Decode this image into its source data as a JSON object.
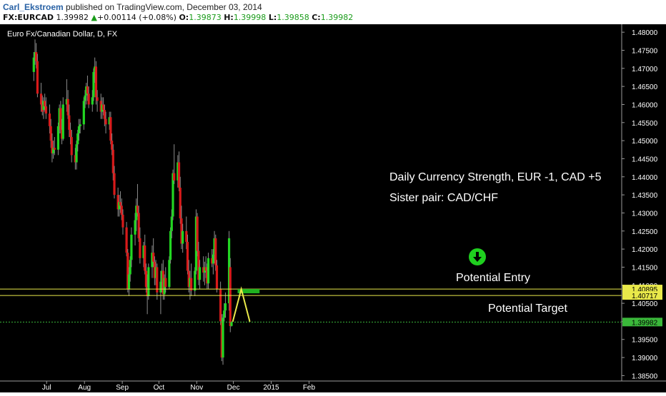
{
  "header": {
    "author": "Carl_Ekstroem",
    "published_text": " published on TradingView.com, December 03, 2014",
    "symbol": "FX:EURCAD",
    "last": "1.39982",
    "change_arrow": "triangle-up-icon",
    "change": "+0.00114 (+0.08%)",
    "open_label": "O:",
    "open": "1.39873",
    "high_label": "H:",
    "high": "1.39998",
    "low_label": "L:",
    "low": "1.39858",
    "close_label": "C:",
    "close": "1.39982"
  },
  "colors": {
    "up": "#22d622",
    "down": "#d81a1a",
    "wick": "#8c8c8c",
    "level_line": "#e9e94a",
    "price_line": "#3ab83a",
    "annotation": "#ffffff",
    "entry_box": "#1fb21f",
    "arrow_circle": "#1fcf1f"
  },
  "chart_data": {
    "type": "candlestick",
    "title": "Euro Fx/Canadian Dollar, D, FX",
    "y_ticks": [
      "1.48000",
      "1.47500",
      "1.47000",
      "1.46500",
      "1.46000",
      "1.45500",
      "1.45000",
      "1.44500",
      "1.44000",
      "1.43500",
      "1.43000",
      "1.42500",
      "1.42000",
      "1.41500",
      "1.41000",
      "1.40500",
      "1.40000",
      "1.39500",
      "1.39000",
      "1.38500"
    ],
    "ylim": [
      1.3835,
      1.4822
    ],
    "x_labels": [
      "Jul",
      "Aug",
      "Sep",
      "Oct",
      "Nov",
      "Dec",
      "2015",
      "Feb"
    ],
    "grid": false,
    "candles": [
      {
        "date": "2014-06-24",
        "o": 1.469,
        "h": 1.4745,
        "l": 1.4665,
        "c": 1.473
      },
      {
        "date": "2014-06-25",
        "o": 1.473,
        "h": 1.478,
        "l": 1.471,
        "c": 1.4745
      },
      {
        "date": "2014-06-26",
        "o": 1.4745,
        "h": 1.477,
        "l": 1.47,
        "c": 1.472
      },
      {
        "date": "2014-06-27",
        "o": 1.472,
        "h": 1.474,
        "l": 1.462,
        "c": 1.463
      },
      {
        "date": "2014-06-30",
        "o": 1.463,
        "h": 1.466,
        "l": 1.458,
        "c": 1.46
      },
      {
        "date": "2014-07-01",
        "o": 1.46,
        "h": 1.4625,
        "l": 1.457,
        "c": 1.458
      },
      {
        "date": "2014-07-02",
        "o": 1.4585,
        "h": 1.462,
        "l": 1.456,
        "c": 1.461
      },
      {
        "date": "2014-07-03",
        "o": 1.461,
        "h": 1.463,
        "l": 1.458,
        "c": 1.4595
      },
      {
        "date": "2014-07-04",
        "o": 1.4595,
        "h": 1.462,
        "l": 1.456,
        "c": 1.4575
      },
      {
        "date": "2014-07-07",
        "o": 1.4575,
        "h": 1.46,
        "l": 1.452,
        "c": 1.454
      },
      {
        "date": "2014-07-08",
        "o": 1.454,
        "h": 1.456,
        "l": 1.448,
        "c": 1.45
      },
      {
        "date": "2014-07-09",
        "o": 1.45,
        "h": 1.452,
        "l": 1.444,
        "c": 1.4465
      },
      {
        "date": "2014-07-10",
        "o": 1.4465,
        "h": 1.45,
        "l": 1.445,
        "c": 1.448
      },
      {
        "date": "2014-07-11",
        "o": 1.448,
        "h": 1.451,
        "l": 1.446,
        "c": 1.4475
      },
      {
        "date": "2014-07-14",
        "o": 1.4475,
        "h": 1.455,
        "l": 1.446,
        "c": 1.454
      },
      {
        "date": "2014-07-15",
        "o": 1.454,
        "h": 1.46,
        "l": 1.452,
        "c": 1.459
      },
      {
        "date": "2014-07-16",
        "o": 1.459,
        "h": 1.461,
        "l": 1.452,
        "c": 1.453
      },
      {
        "date": "2014-07-17",
        "o": 1.453,
        "h": 1.456,
        "l": 1.449,
        "c": 1.4505
      },
      {
        "date": "2014-07-18",
        "o": 1.4505,
        "h": 1.462,
        "l": 1.45,
        "c": 1.46
      },
      {
        "date": "2014-07-21",
        "o": 1.46,
        "h": 1.467,
        "l": 1.458,
        "c": 1.4615
      },
      {
        "date": "2014-07-22",
        "o": 1.4615,
        "h": 1.464,
        "l": 1.456,
        "c": 1.457
      },
      {
        "date": "2014-07-23",
        "o": 1.457,
        "h": 1.46,
        "l": 1.451,
        "c": 1.453
      },
      {
        "date": "2014-07-24",
        "o": 1.453,
        "h": 1.455,
        "l": 1.449,
        "c": 1.451
      },
      {
        "date": "2014-07-25",
        "o": 1.451,
        "h": 1.453,
        "l": 1.444,
        "c": 1.446
      },
      {
        "date": "2014-07-28",
        "o": 1.446,
        "h": 1.448,
        "l": 1.442,
        "c": 1.444
      },
      {
        "date": "2014-07-29",
        "o": 1.444,
        "h": 1.45,
        "l": 1.442,
        "c": 1.449
      },
      {
        "date": "2014-07-30",
        "o": 1.449,
        "h": 1.453,
        "l": 1.447,
        "c": 1.452
      },
      {
        "date": "2014-07-31",
        "o": 1.452,
        "h": 1.456,
        "l": 1.45,
        "c": 1.454
      },
      {
        "date": "2014-08-01",
        "o": 1.454,
        "h": 1.456,
        "l": 1.452,
        "c": 1.4545
      },
      {
        "date": "2014-08-04",
        "o": 1.4545,
        "h": 1.462,
        "l": 1.453,
        "c": 1.461
      },
      {
        "date": "2014-08-05",
        "o": 1.461,
        "h": 1.464,
        "l": 1.459,
        "c": 1.4625
      },
      {
        "date": "2014-08-06",
        "o": 1.4625,
        "h": 1.466,
        "l": 1.46,
        "c": 1.465
      },
      {
        "date": "2014-08-07",
        "o": 1.465,
        "h": 1.468,
        "l": 1.461,
        "c": 1.463
      },
      {
        "date": "2014-08-08",
        "o": 1.463,
        "h": 1.465,
        "l": 1.459,
        "c": 1.46
      },
      {
        "date": "2014-08-11",
        "o": 1.46,
        "h": 1.464,
        "l": 1.458,
        "c": 1.462
      },
      {
        "date": "2014-08-12",
        "o": 1.462,
        "h": 1.47,
        "l": 1.461,
        "c": 1.469
      },
      {
        "date": "2014-08-13",
        "o": 1.469,
        "h": 1.473,
        "l": 1.466,
        "c": 1.4705
      },
      {
        "date": "2014-08-14",
        "o": 1.4705,
        "h": 1.472,
        "l": 1.46,
        "c": 1.462
      },
      {
        "date": "2014-08-15",
        "o": 1.462,
        "h": 1.464,
        "l": 1.458,
        "c": 1.461
      },
      {
        "date": "2014-08-18",
        "o": 1.461,
        "h": 1.463,
        "l": 1.456,
        "c": 1.458
      },
      {
        "date": "2014-08-19",
        "o": 1.458,
        "h": 1.462,
        "l": 1.456,
        "c": 1.46
      },
      {
        "date": "2014-08-20",
        "o": 1.46,
        "h": 1.462,
        "l": 1.457,
        "c": 1.4585
      },
      {
        "date": "2014-08-21",
        "o": 1.4585,
        "h": 1.46,
        "l": 1.454,
        "c": 1.456
      },
      {
        "date": "2014-08-22",
        "o": 1.456,
        "h": 1.458,
        "l": 1.452,
        "c": 1.4545
      },
      {
        "date": "2014-08-25",
        "o": 1.4545,
        "h": 1.458,
        "l": 1.453,
        "c": 1.4565
      },
      {
        "date": "2014-08-26",
        "o": 1.4565,
        "h": 1.458,
        "l": 1.449,
        "c": 1.45
      },
      {
        "date": "2014-08-27",
        "o": 1.45,
        "h": 1.452,
        "l": 1.446,
        "c": 1.4475
      },
      {
        "date": "2014-08-28",
        "o": 1.4475,
        "h": 1.449,
        "l": 1.439,
        "c": 1.441
      },
      {
        "date": "2014-08-29",
        "o": 1.441,
        "h": 1.443,
        "l": 1.434,
        "c": 1.435
      },
      {
        "date": "2014-09-01",
        "o": 1.435,
        "h": 1.437,
        "l": 1.429,
        "c": 1.431
      },
      {
        "date": "2014-09-02",
        "o": 1.431,
        "h": 1.435,
        "l": 1.429,
        "c": 1.433
      },
      {
        "date": "2014-09-03",
        "o": 1.433,
        "h": 1.436,
        "l": 1.43,
        "c": 1.432
      },
      {
        "date": "2014-09-04",
        "o": 1.432,
        "h": 1.434,
        "l": 1.428,
        "c": 1.4295
      },
      {
        "date": "2014-09-05",
        "o": 1.4295,
        "h": 1.431,
        "l": 1.424,
        "c": 1.426
      },
      {
        "date": "2014-09-08",
        "o": 1.426,
        "h": 1.4275,
        "l": 1.418,
        "c": 1.419
      },
      {
        "date": "2014-09-09",
        "o": 1.419,
        "h": 1.42,
        "l": 1.408,
        "c": 1.409
      },
      {
        "date": "2014-09-10",
        "o": 1.409,
        "h": 1.415,
        "l": 1.407,
        "c": 1.413
      },
      {
        "date": "2014-09-11",
        "o": 1.413,
        "h": 1.418,
        "l": 1.411,
        "c": 1.417
      },
      {
        "date": "2014-09-12",
        "o": 1.417,
        "h": 1.426,
        "l": 1.415,
        "c": 1.424
      },
      {
        "date": "2014-09-15",
        "o": 1.424,
        "h": 1.43,
        "l": 1.421,
        "c": 1.428
      },
      {
        "date": "2014-09-16",
        "o": 1.428,
        "h": 1.434,
        "l": 1.425,
        "c": 1.432
      },
      {
        "date": "2014-09-17",
        "o": 1.432,
        "h": 1.438,
        "l": 1.429,
        "c": 1.43
      },
      {
        "date": "2014-09-18",
        "o": 1.43,
        "h": 1.432,
        "l": 1.422,
        "c": 1.423
      },
      {
        "date": "2014-09-19",
        "o": 1.423,
        "h": 1.426,
        "l": 1.416,
        "c": 1.4175
      },
      {
        "date": "2014-09-22",
        "o": 1.4175,
        "h": 1.422,
        "l": 1.415,
        "c": 1.421
      },
      {
        "date": "2014-09-23",
        "o": 1.421,
        "h": 1.424,
        "l": 1.413,
        "c": 1.414
      },
      {
        "date": "2014-09-24",
        "o": 1.414,
        "h": 1.416,
        "l": 1.408,
        "c": 1.4095
      },
      {
        "date": "2014-09-25",
        "o": 1.4095,
        "h": 1.413,
        "l": 1.402,
        "c": 1.407
      },
      {
        "date": "2014-09-26",
        "o": 1.407,
        "h": 1.416,
        "l": 1.406,
        "c": 1.415
      },
      {
        "date": "2014-09-29",
        "o": 1.415,
        "h": 1.421,
        "l": 1.412,
        "c": 1.419
      },
      {
        "date": "2014-09-30",
        "o": 1.419,
        "h": 1.423,
        "l": 1.415,
        "c": 1.4165
      },
      {
        "date": "2014-10-01",
        "o": 1.4165,
        "h": 1.418,
        "l": 1.41,
        "c": 1.412
      },
      {
        "date": "2014-10-02",
        "o": 1.412,
        "h": 1.417,
        "l": 1.41,
        "c": 1.415
      },
      {
        "date": "2014-10-03",
        "o": 1.415,
        "h": 1.416,
        "l": 1.406,
        "c": 1.408
      },
      {
        "date": "2014-10-06",
        "o": 1.408,
        "h": 1.414,
        "l": 1.402,
        "c": 1.411
      },
      {
        "date": "2014-10-07",
        "o": 1.411,
        "h": 1.416,
        "l": 1.408,
        "c": 1.414
      },
      {
        "date": "2014-10-08",
        "o": 1.414,
        "h": 1.417,
        "l": 1.406,
        "c": 1.4075
      },
      {
        "date": "2014-10-09",
        "o": 1.4075,
        "h": 1.413,
        "l": 1.406,
        "c": 1.412
      },
      {
        "date": "2014-10-10",
        "o": 1.412,
        "h": 1.415,
        "l": 1.408,
        "c": 1.4095
      },
      {
        "date": "2014-10-13",
        "o": 1.4095,
        "h": 1.418,
        "l": 1.409,
        "c": 1.417
      },
      {
        "date": "2014-10-14",
        "o": 1.417,
        "h": 1.426,
        "l": 1.416,
        "c": 1.425
      },
      {
        "date": "2014-10-15",
        "o": 1.425,
        "h": 1.431,
        "l": 1.423,
        "c": 1.429
      },
      {
        "date": "2014-10-16",
        "o": 1.429,
        "h": 1.442,
        "l": 1.428,
        "c": 1.441
      },
      {
        "date": "2014-10-17",
        "o": 1.441,
        "h": 1.449,
        "l": 1.438,
        "c": 1.439
      },
      {
        "date": "2014-10-20",
        "o": 1.439,
        "h": 1.446,
        "l": 1.437,
        "c": 1.444
      },
      {
        "date": "2014-10-21",
        "o": 1.444,
        "h": 1.447,
        "l": 1.436,
        "c": 1.437
      },
      {
        "date": "2014-10-22",
        "o": 1.437,
        "h": 1.44,
        "l": 1.427,
        "c": 1.4285
      },
      {
        "date": "2014-10-23",
        "o": 1.4285,
        "h": 1.432,
        "l": 1.42,
        "c": 1.4215
      },
      {
        "date": "2014-10-24",
        "o": 1.4215,
        "h": 1.427,
        "l": 1.419,
        "c": 1.425
      },
      {
        "date": "2014-10-27",
        "o": 1.425,
        "h": 1.429,
        "l": 1.42,
        "c": 1.422
      },
      {
        "date": "2014-10-28",
        "o": 1.422,
        "h": 1.424,
        "l": 1.413,
        "c": 1.414
      },
      {
        "date": "2014-10-29",
        "o": 1.414,
        "h": 1.417,
        "l": 1.408,
        "c": 1.4095
      },
      {
        "date": "2014-10-30",
        "o": 1.4095,
        "h": 1.414,
        "l": 1.406,
        "c": 1.412
      },
      {
        "date": "2014-10-31",
        "o": 1.412,
        "h": 1.416,
        "l": 1.407,
        "c": 1.4085
      },
      {
        "date": "2014-11-03",
        "o": 1.4085,
        "h": 1.415,
        "l": 1.407,
        "c": 1.414
      },
      {
        "date": "2014-11-04",
        "o": 1.414,
        "h": 1.431,
        "l": 1.413,
        "c": 1.429
      },
      {
        "date": "2014-11-05",
        "o": 1.429,
        "h": 1.43,
        "l": 1.418,
        "c": 1.4195
      },
      {
        "date": "2014-11-06",
        "o": 1.4195,
        "h": 1.422,
        "l": 1.41,
        "c": 1.4115
      },
      {
        "date": "2014-11-07",
        "o": 1.4115,
        "h": 1.417,
        "l": 1.409,
        "c": 1.415
      },
      {
        "date": "2014-11-10",
        "o": 1.415,
        "h": 1.418,
        "l": 1.411,
        "c": 1.4135
      },
      {
        "date": "2014-11-11",
        "o": 1.4135,
        "h": 1.4165,
        "l": 1.41,
        "c": 1.415
      },
      {
        "date": "2014-11-12",
        "o": 1.415,
        "h": 1.418,
        "l": 1.412,
        "c": 1.414
      },
      {
        "date": "2014-11-13",
        "o": 1.414,
        "h": 1.416,
        "l": 1.409,
        "c": 1.4105
      },
      {
        "date": "2014-11-14",
        "o": 1.4105,
        "h": 1.419,
        "l": 1.409,
        "c": 1.4175
      },
      {
        "date": "2014-11-17",
        "o": 1.4175,
        "h": 1.42,
        "l": 1.415,
        "c": 1.416
      },
      {
        "date": "2014-11-18",
        "o": 1.416,
        "h": 1.42,
        "l": 1.413,
        "c": 1.4185
      },
      {
        "date": "2014-11-19",
        "o": 1.4185,
        "h": 1.425,
        "l": 1.416,
        "c": 1.423
      },
      {
        "date": "2014-11-20",
        "o": 1.423,
        "h": 1.424,
        "l": 1.414,
        "c": 1.4155
      },
      {
        "date": "2014-11-21",
        "o": 1.4155,
        "h": 1.417,
        "l": 1.408,
        "c": 1.409
      },
      {
        "date": "2014-11-24",
        "o": 1.409,
        "h": 1.411,
        "l": 1.399,
        "c": 1.4
      },
      {
        "date": "2014-11-25",
        "o": 1.4,
        "h": 1.402,
        "l": 1.389,
        "c": 1.39
      },
      {
        "date": "2014-11-26",
        "o": 1.39,
        "h": 1.402,
        "l": 1.388,
        "c": 1.401
      },
      {
        "date": "2014-11-27",
        "o": 1.401,
        "h": 1.405,
        "l": 1.4,
        "c": 1.403
      },
      {
        "date": "2014-11-28",
        "o": 1.403,
        "h": 1.408,
        "l": 1.401,
        "c": 1.405
      },
      {
        "date": "2014-12-01",
        "o": 1.405,
        "h": 1.425,
        "l": 1.403,
        "c": 1.423
      },
      {
        "date": "2014-12-02",
        "o": 1.415,
        "h": 1.4175,
        "l": 1.397,
        "c": 1.3987
      },
      {
        "date": "2014-12-03",
        "o": 1.39873,
        "h": 1.39998,
        "l": 1.39858,
        "c": 1.39982
      }
    ],
    "levels": [
      {
        "value": 1.40895,
        "label": "1.40895",
        "style": "level"
      },
      {
        "value": 1.40717,
        "label": "1.40717",
        "style": "level"
      },
      {
        "value": 1.39982,
        "label": "1.39982",
        "style": "price"
      }
    ],
    "annotations": {
      "strength": "Daily Currency Strength, EUR -1, CAD +5",
      "sister": "Sister pair: CAD/CHF",
      "entry": "Potential Entry",
      "target": "Potential Target",
      "entry_icon": "arrow-down-circle-icon",
      "entry_zone_from": "2014-12-08",
      "entry_zone_to": "2014-12-26",
      "path_dates": [
        "2014-12-04",
        "2014-12-11",
        "2014-12-18"
      ],
      "path_values": [
        1.3999,
        1.40895,
        1.3999
      ]
    }
  }
}
